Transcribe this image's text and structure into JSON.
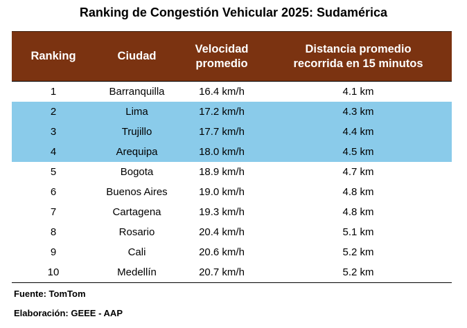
{
  "title": "Ranking de Congestión Vehicular 2025: Sudamérica",
  "headers": {
    "ranking": "Ranking",
    "ciudad": "Ciudad",
    "velocidad_l1": "Velocidad",
    "velocidad_l2": "promedio",
    "distancia_l1": "Distancia promedio",
    "distancia_l2": "recorrida en 15 minutos"
  },
  "rows": [
    {
      "rank": "1",
      "city": "Barranquilla",
      "speed": "16.4 km/h",
      "distance": "4.1 km",
      "highlight": false
    },
    {
      "rank": "2",
      "city": "Lima",
      "speed": "17.2 km/h",
      "distance": "4.3 km",
      "highlight": true
    },
    {
      "rank": "3",
      "city": "Trujillo",
      "speed": "17.7 km/h",
      "distance": "4.4 km",
      "highlight": true
    },
    {
      "rank": "4",
      "city": "Arequipa",
      "speed": "18.0 km/h",
      "distance": "4.5 km",
      "highlight": true
    },
    {
      "rank": "5",
      "city": "Bogota",
      "speed": "18.9 km/h",
      "distance": "4.7 km",
      "highlight": false
    },
    {
      "rank": "6",
      "city": "Buenos Aires",
      "speed": "19.0 km/h",
      "distance": "4.8 km",
      "highlight": false
    },
    {
      "rank": "7",
      "city": "Cartagena",
      "speed": "19.3 km/h",
      "distance": "4.8 km",
      "highlight": false
    },
    {
      "rank": "8",
      "city": "Rosario",
      "speed": "20.4 km/h",
      "distance": "5.1 km",
      "highlight": false
    },
    {
      "rank": "9",
      "city": "Cali",
      "speed": "20.6 km/h",
      "distance": "5.2 km",
      "highlight": false
    },
    {
      "rank": "10",
      "city": "Medellín",
      "speed": "20.7 km/h",
      "distance": "5.2 km",
      "highlight": false
    }
  ],
  "notes": {
    "fuente": "Fuente: TomTom",
    "elaboracion": "Elaboración: GEEE - AAP"
  },
  "colors": {
    "header_bg": "#7b3311",
    "header_text": "#ffffff",
    "highlight_bg": "#8acbea"
  }
}
